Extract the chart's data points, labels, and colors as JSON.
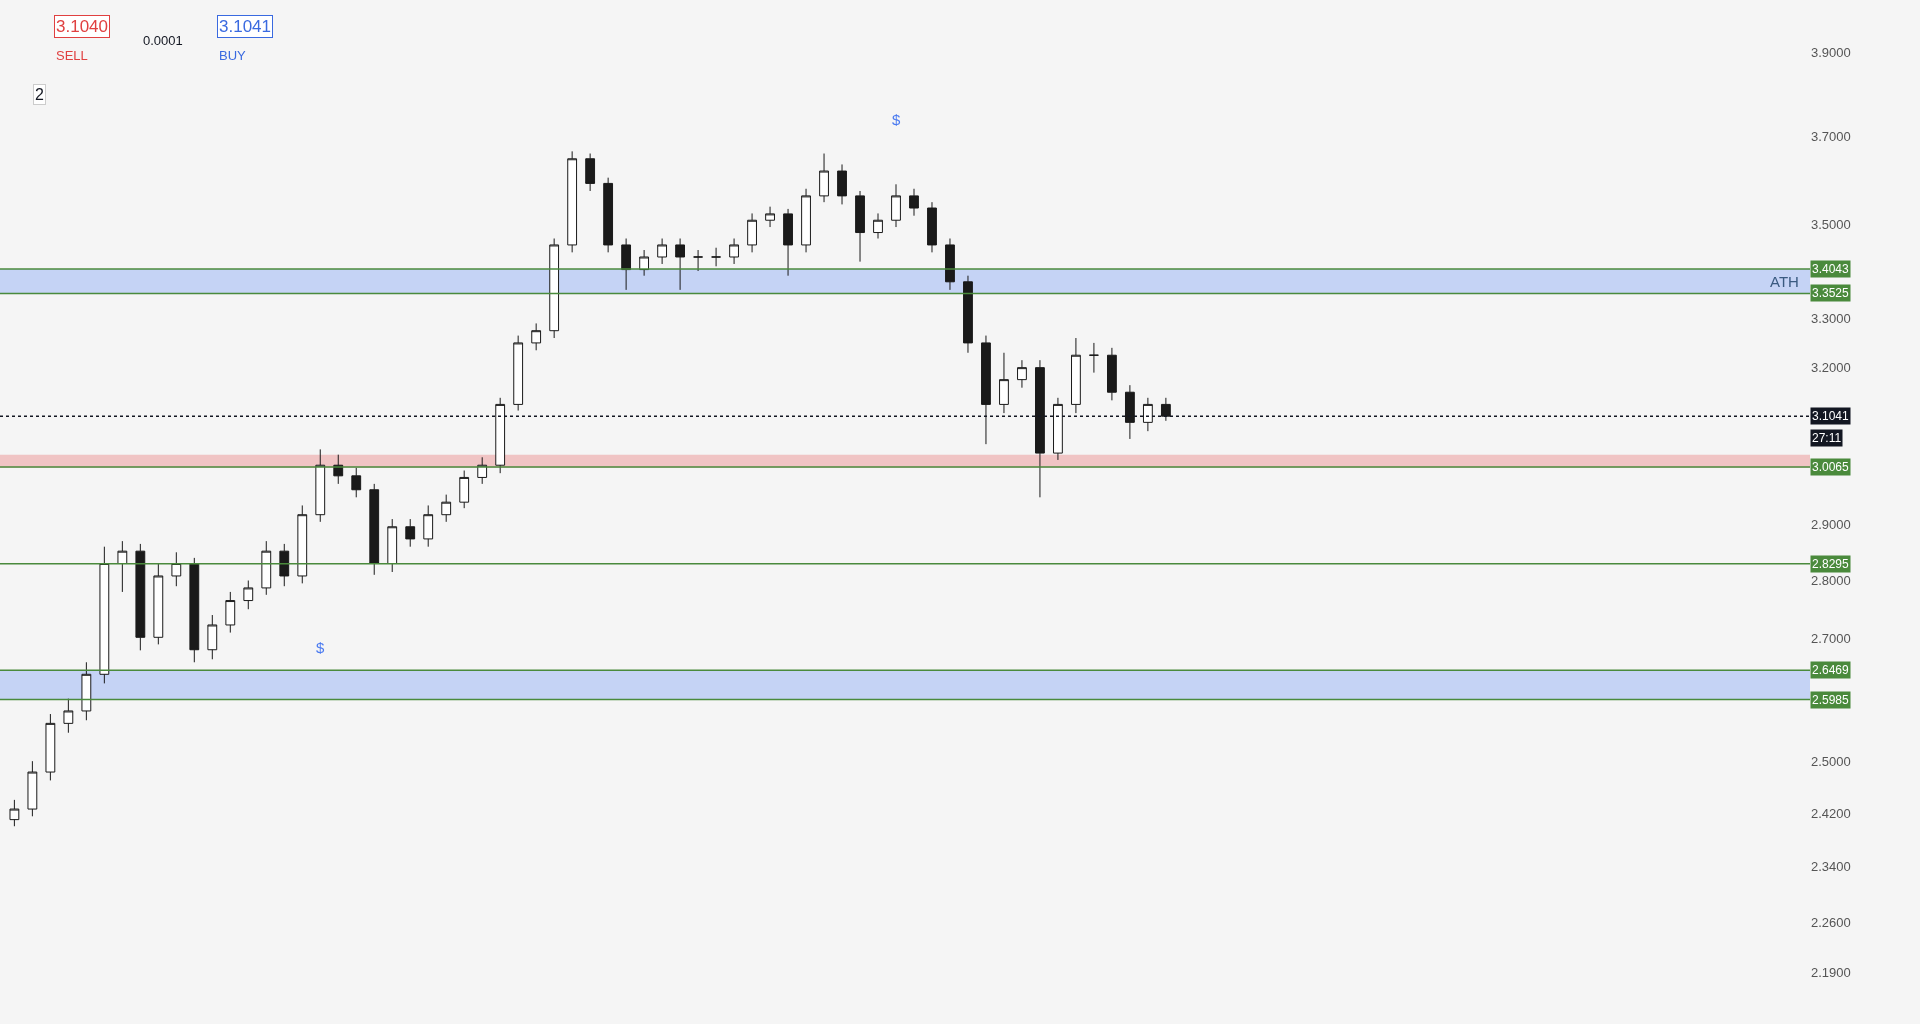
{
  "chart_data": {
    "type": "candlestick",
    "color": "#1a1a1a",
    "categories": [
      null,
      null,
      null,
      null,
      null,
      null,
      null,
      null,
      null,
      null,
      null,
      null,
      null,
      null,
      null,
      null,
      null,
      null,
      null,
      null,
      null,
      null,
      null,
      null,
      null,
      null,
      null,
      null,
      null,
      null,
      null,
      null,
      null,
      null,
      null,
      null,
      null,
      null,
      null,
      null,
      null,
      null,
      null,
      null,
      null,
      null,
      null,
      null,
      null,
      null,
      null,
      null,
      null,
      null,
      null,
      null,
      null,
      null,
      null,
      null,
      null,
      null,
      null,
      null,
      null,
      null,
      null,
      null,
      null,
      null,
      null,
      null,
      null,
      null,
      null,
      null,
      null,
      null,
      null,
      null,
      null,
      null,
      null,
      null,
      null,
      null,
      null,
      null,
      null,
      null,
      null,
      null,
      null,
      null,
      null,
      null,
      null,
      null,
      null,
      null
    ],
    "ohlc": [
      [
        2.41,
        2.44,
        2.4,
        2.426
      ],
      [
        2.426,
        2.5,
        2.415,
        2.483
      ],
      [
        2.483,
        2.575,
        2.47,
        2.56
      ],
      [
        2.56,
        2.6,
        2.545,
        2.58
      ],
      [
        2.58,
        2.66,
        2.565,
        2.64
      ],
      [
        2.64,
        2.86,
        2.625,
        2.83
      ],
      [
        2.83,
        2.87,
        2.78,
        2.852
      ],
      [
        2.852,
        2.865,
        2.68,
        2.702
      ],
      [
        2.702,
        2.83,
        2.69,
        2.808
      ],
      [
        2.808,
        2.85,
        2.79,
        2.83
      ],
      [
        2.83,
        2.84,
        2.66,
        2.681
      ],
      [
        2.681,
        2.74,
        2.665,
        2.723
      ],
      [
        2.723,
        2.78,
        2.71,
        2.765
      ],
      [
        2.765,
        2.8,
        2.75,
        2.787
      ],
      [
        2.787,
        2.87,
        2.775,
        2.852
      ],
      [
        2.852,
        2.865,
        2.79,
        2.808
      ],
      [
        2.808,
        2.935,
        2.795,
        2.918
      ],
      [
        2.918,
        3.04,
        2.905,
        3.01
      ],
      [
        3.01,
        3.03,
        2.975,
        2.99
      ],
      [
        2.99,
        3.005,
        2.95,
        2.964
      ],
      [
        2.964,
        2.975,
        2.81,
        2.83
      ],
      [
        2.83,
        2.91,
        2.815,
        2.896
      ],
      [
        2.896,
        2.91,
        2.86,
        2.874
      ],
      [
        2.874,
        2.935,
        2.86,
        2.918
      ],
      [
        2.918,
        2.955,
        2.905,
        2.941
      ],
      [
        2.941,
        3.0,
        2.93,
        2.987
      ],
      [
        2.987,
        3.025,
        2.975,
        3.01
      ],
      [
        3.01,
        3.14,
        2.995,
        3.127
      ],
      [
        3.127,
        3.265,
        3.115,
        3.25
      ],
      [
        3.25,
        3.29,
        3.235,
        3.275
      ],
      [
        3.275,
        3.47,
        3.26,
        3.456
      ],
      [
        3.456,
        3.665,
        3.44,
        3.648
      ],
      [
        3.648,
        3.66,
        3.575,
        3.592
      ],
      [
        3.592,
        3.605,
        3.44,
        3.456
      ],
      [
        3.456,
        3.47,
        3.36,
        3.403
      ],
      [
        3.403,
        3.445,
        3.39,
        3.43
      ],
      [
        3.43,
        3.47,
        3.415,
        3.456
      ],
      [
        3.456,
        3.47,
        3.36,
        3.43
      ],
      [
        3.43,
        3.445,
        3.4,
        3.43
      ],
      [
        3.43,
        3.45,
        3.41,
        3.43
      ],
      [
        3.43,
        3.47,
        3.415,
        3.456
      ],
      [
        3.456,
        3.525,
        3.44,
        3.51
      ],
      [
        3.51,
        3.54,
        3.495,
        3.524
      ],
      [
        3.524,
        3.535,
        3.39,
        3.456
      ],
      [
        3.456,
        3.58,
        3.44,
        3.564
      ],
      [
        3.564,
        3.66,
        3.55,
        3.62
      ],
      [
        3.62,
        3.635,
        3.545,
        3.564
      ],
      [
        3.564,
        3.575,
        3.42,
        3.483
      ],
      [
        3.483,
        3.525,
        3.47,
        3.51
      ],
      [
        3.51,
        3.59,
        3.495,
        3.564
      ],
      [
        3.564,
        3.58,
        3.52,
        3.537
      ],
      [
        3.537,
        3.55,
        3.44,
        3.456
      ],
      [
        3.456,
        3.47,
        3.36,
        3.377
      ],
      [
        3.377,
        3.39,
        3.23,
        3.25
      ],
      [
        3.25,
        3.265,
        3.05,
        3.127
      ],
      [
        3.127,
        3.23,
        3.11,
        3.176
      ],
      [
        3.176,
        3.215,
        3.16,
        3.2
      ],
      [
        3.2,
        3.215,
        2.95,
        3.033
      ],
      [
        3.033,
        3.14,
        3.02,
        3.127
      ],
      [
        3.127,
        3.26,
        3.11,
        3.225
      ],
      [
        3.225,
        3.25,
        3.19,
        3.225
      ],
      [
        3.225,
        3.24,
        3.135,
        3.151
      ],
      [
        3.151,
        3.165,
        3.06,
        3.092
      ],
      [
        3.092,
        3.14,
        3.075,
        3.127
      ],
      [
        3.127,
        3.14,
        3.095,
        3.104
      ],
      null,
      null,
      null,
      null,
      null,
      null,
      null,
      null,
      null,
      null,
      null,
      null,
      null,
      null,
      null,
      null,
      null,
      null,
      null,
      null,
      null,
      null,
      null,
      null,
      null,
      null,
      null,
      null,
      null,
      null,
      null,
      null,
      null,
      null,
      null
    ],
    "log": true,
    "ylim": [
      2.12,
      4.03
    ],
    "yticks": [
      {
        "value": 3.9,
        "label": "3.9000"
      },
      {
        "value": 3.7,
        "label": "3.7000"
      },
      {
        "value": 3.5,
        "label": "3.5000"
      },
      {
        "value": 3.3,
        "label": "3.3000"
      },
      {
        "value": 3.2,
        "label": "3.2000"
      },
      {
        "value": 2.9,
        "label": "2.9000"
      },
      {
        "value": 2.8,
        "label": "2.8000"
      },
      {
        "value": 2.7,
        "label": "2.7000"
      },
      {
        "value": 2.5,
        "label": "2.5000"
      },
      {
        "value": 2.42,
        "label": "2.4200"
      },
      {
        "value": 2.34,
        "label": "2.3400"
      },
      {
        "value": 2.26,
        "label": "2.2600"
      },
      {
        "value": 2.19,
        "label": "2.1900"
      }
    ],
    "tick_labels": "y",
    "grid": false,
    "ref_lines": [
      {
        "axis": "y",
        "value": 3.4043,
        "label": "3.4043",
        "color": "#4a8a3c"
      },
      {
        "axis": "y",
        "value": 3.3525,
        "label": "3.3525",
        "color": "#4a8a3c"
      },
      {
        "axis": "y",
        "value": 3.0065,
        "label": "3.0065",
        "color": "#4a8a3c"
      },
      {
        "axis": "y",
        "value": 2.8295,
        "label": "2.8295",
        "color": "#4a8a3c"
      },
      {
        "axis": "y",
        "value": 2.6469,
        "label": "2.6469",
        "color": "#4a8a3c"
      },
      {
        "axis": "y",
        "value": 2.5985,
        "label": "2.5985",
        "color": "#4a8a3c"
      },
      {
        "axis": "y",
        "value": 3.1041,
        "label": "3.1041",
        "color": "#131722",
        "line_style": "dotted"
      }
    ],
    "bands": [
      {
        "axis": "y",
        "from": 3.3525,
        "to": 3.4043,
        "label": "ATH",
        "color": "#c5d3f5"
      },
      {
        "axis": "y",
        "from": 2.5985,
        "to": 2.6469,
        "color": "#c5d3f5"
      },
      {
        "axis": "y",
        "from": 3.005,
        "to": 3.03,
        "color": "#f0c4c4"
      }
    ],
    "annotations": [
      "3.1040",
      "SELL",
      "0.0001",
      "3.1041",
      "BUY",
      "2",
      "$",
      "$",
      "27:11"
    ]
  }
}
